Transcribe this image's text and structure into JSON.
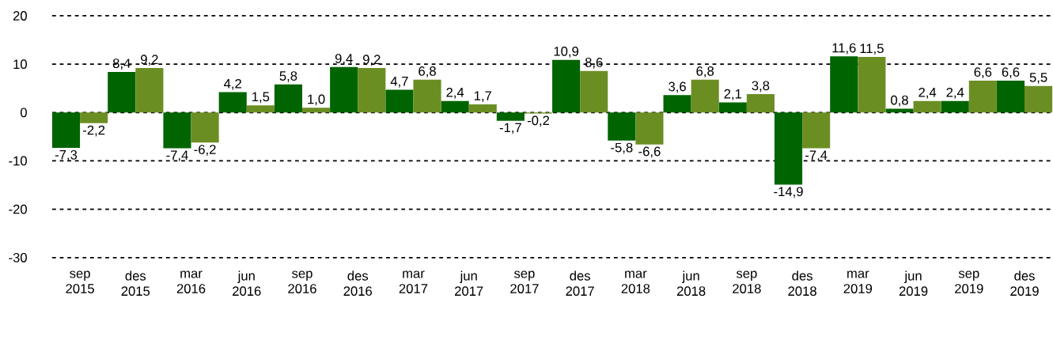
{
  "chart_data": {
    "type": "bar",
    "categories": [
      "sep 2015",
      "des 2015",
      "mar 2016",
      "jun 2016",
      "sep 2016",
      "des 2016",
      "mar 2017",
      "jun 2017",
      "sep 2017",
      "des 2017",
      "mar 2018",
      "jun 2018",
      "sep 2018",
      "des 2018",
      "mar 2019",
      "jun 2019",
      "sep 2019",
      "des 2019"
    ],
    "series": [
      {
        "color": "#006400",
        "values": [
          -7.3,
          8.4,
          -7.4,
          4.2,
          5.8,
          9.4,
          4.7,
          2.4,
          -1.7,
          10.9,
          -5.8,
          3.6,
          2.1,
          -14.9,
          11.6,
          0.8,
          2.4,
          6.6
        ],
        "value_labels": [
          "-7,3",
          "8,4",
          "-7,4",
          "4,2",
          "5,8",
          "9,4",
          "4,7",
          "2,4",
          "-1,7",
          "10,9",
          "-5,8",
          "3,6",
          "2,1",
          "-14,9",
          "11,6",
          "0,8",
          "2,4",
          "6,6"
        ]
      },
      {
        "color": "#6b8e23",
        "values": [
          -2.2,
          9.2,
          -6.2,
          1.5,
          1.0,
          9.2,
          6.8,
          1.7,
          -0.2,
          8.6,
          -6.6,
          6.8,
          3.8,
          -7.4,
          11.5,
          2.4,
          6.6,
          5.5
        ],
        "value_labels": [
          "-2,2",
          "9,2",
          "-6,2",
          "1,5",
          "1,0",
          "9,2",
          "6,8",
          "1,7",
          "-0,2",
          "8,6",
          "-6,6",
          "6,8",
          "3,8",
          "-7,4",
          "11,5",
          "2,4",
          "6,6",
          "5,5"
        ]
      }
    ],
    "ylim": [
      -30,
      20
    ],
    "yticks": [
      20,
      10,
      0,
      -10,
      -20,
      -30
    ],
    "grid": "y"
  }
}
